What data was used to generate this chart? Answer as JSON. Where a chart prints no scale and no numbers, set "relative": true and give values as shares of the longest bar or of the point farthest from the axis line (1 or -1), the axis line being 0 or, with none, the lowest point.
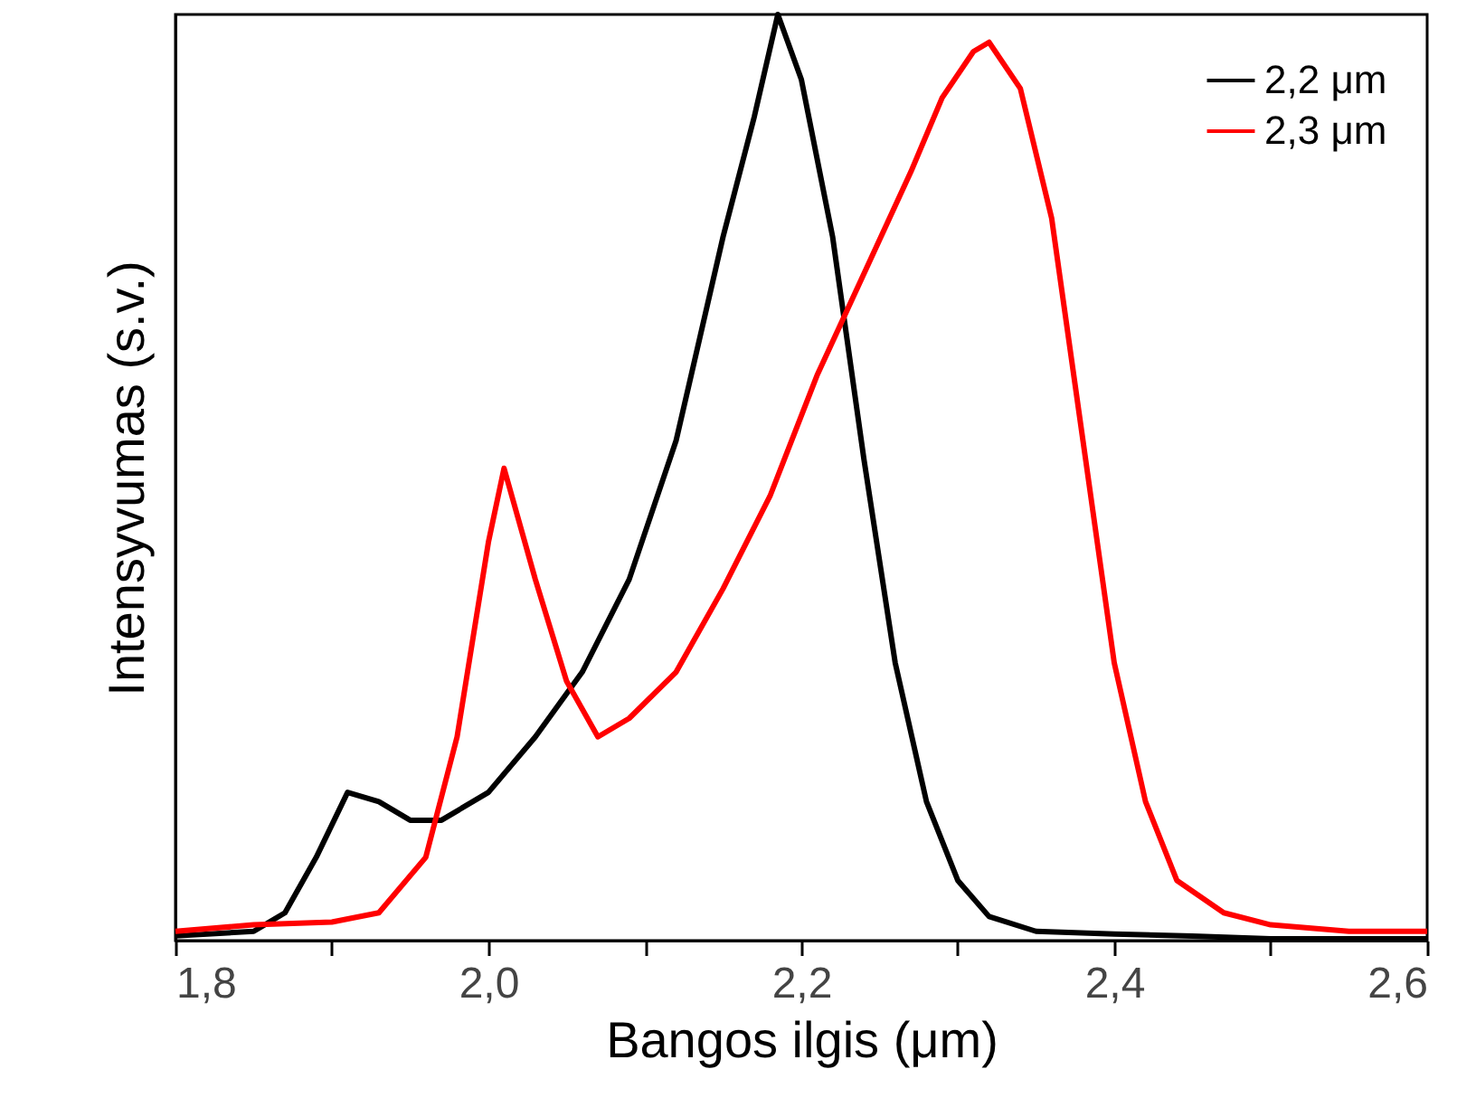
{
  "chart_data": {
    "type": "line",
    "xlabel": "Bangos ilgis (μm)",
    "ylabel": "Intensyvumas (s.v.)",
    "relative": true,
    "xlim": [
      1.8,
      2.6
    ],
    "xticks": [
      {
        "value": 1.8,
        "label": "1,8"
      },
      {
        "value": 1.9,
        "label": null
      },
      {
        "value": 2.0,
        "label": "2,0"
      },
      {
        "value": 2.1,
        "label": null
      },
      {
        "value": 2.2,
        "label": "2,2"
      },
      {
        "value": 2.3,
        "label": null
      },
      {
        "value": 2.4,
        "label": "2,4"
      },
      {
        "value": 2.5,
        "label": null
      },
      {
        "value": 2.6,
        "label": "2,6"
      }
    ],
    "legend": "top right",
    "tick_labels": "x",
    "grid": false,
    "series": [
      {
        "name": "2,2 μm",
        "color": "#000000",
        "x": [
          1.8,
          1.85,
          1.87,
          1.89,
          1.91,
          1.93,
          1.95,
          1.97,
          2.0,
          2.03,
          2.06,
          2.09,
          2.12,
          2.15,
          2.17,
          2.185,
          2.2,
          2.22,
          2.24,
          2.26,
          2.28,
          2.3,
          2.32,
          2.35,
          2.4,
          2.45,
          2.5,
          2.6
        ],
        "values": [
          0.005,
          0.01,
          0.03,
          0.09,
          0.16,
          0.15,
          0.13,
          0.13,
          0.16,
          0.22,
          0.29,
          0.39,
          0.54,
          0.76,
          0.89,
          1.0,
          0.93,
          0.76,
          0.52,
          0.3,
          0.15,
          0.065,
          0.026,
          0.01,
          0.007,
          0.005,
          0.002,
          0.002
        ]
      },
      {
        "name": "2,3 μm",
        "color": "#ff0000",
        "x": [
          1.8,
          1.85,
          1.9,
          1.93,
          1.96,
          1.98,
          2.0,
          2.01,
          2.03,
          2.05,
          2.07,
          2.09,
          2.12,
          2.15,
          2.18,
          2.21,
          2.24,
          2.27,
          2.29,
          2.31,
          2.32,
          2.34,
          2.36,
          2.38,
          2.4,
          2.42,
          2.44,
          2.47,
          2.5,
          2.55,
          2.6
        ],
        "values": [
          0.01,
          0.017,
          0.02,
          0.03,
          0.09,
          0.22,
          0.43,
          0.51,
          0.39,
          0.28,
          0.22,
          0.24,
          0.29,
          0.38,
          0.48,
          0.61,
          0.72,
          0.83,
          0.91,
          0.96,
          0.97,
          0.92,
          0.78,
          0.54,
          0.3,
          0.15,
          0.065,
          0.03,
          0.017,
          0.01,
          0.01
        ]
      }
    ]
  }
}
